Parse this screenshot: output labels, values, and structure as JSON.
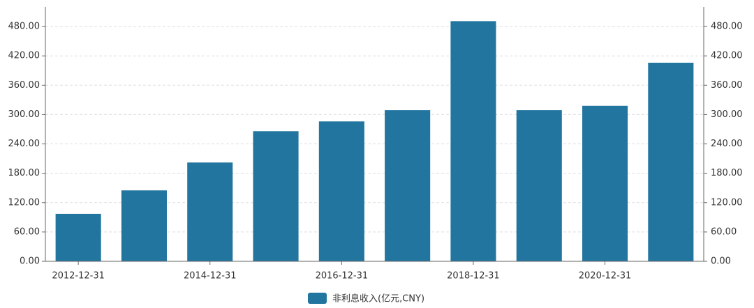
{
  "chart_data": {
    "type": "bar",
    "categories": [
      "2012-12-31",
      null,
      "2014-12-31",
      null,
      "2016-12-31",
      null,
      "2018-12-31",
      null,
      "2020-12-31",
      null
    ],
    "series": [
      {
        "name": "非利息收入(亿元,CNY)",
        "color": "#21759f",
        "values": [
          97,
          145,
          202,
          266,
          286,
          309,
          491,
          309,
          318,
          406
        ]
      }
    ],
    "ylim": [
      0,
      520
    ],
    "yticks": [
      {
        "value": 0,
        "label": "0.00"
      },
      {
        "value": 60,
        "label": "60.00"
      },
      {
        "value": 120,
        "label": "120.00"
      },
      {
        "value": 180,
        "label": "180.00"
      },
      {
        "value": 240,
        "label": "240.00"
      },
      {
        "value": 300,
        "label": "300.00"
      },
      {
        "value": 360,
        "label": "360.00"
      },
      {
        "value": 420,
        "label": "420.00"
      },
      {
        "value": 480,
        "label": "480.00"
      }
    ],
    "y2lim": [
      0,
      520
    ],
    "y2ticks": [
      {
        "value": 0,
        "label": "0.00"
      },
      {
        "value": 60,
        "label": "60.00"
      },
      {
        "value": 120,
        "label": "120.00"
      },
      {
        "value": 180,
        "label": "180.00"
      },
      {
        "value": 240,
        "label": "240.00"
      },
      {
        "value": 300,
        "label": "300.00"
      },
      {
        "value": 360,
        "label": "360.00"
      },
      {
        "value": 420,
        "label": "420.00"
      },
      {
        "value": 480,
        "label": "480.00"
      }
    ],
    "grid": true,
    "legend": "bottom"
  }
}
